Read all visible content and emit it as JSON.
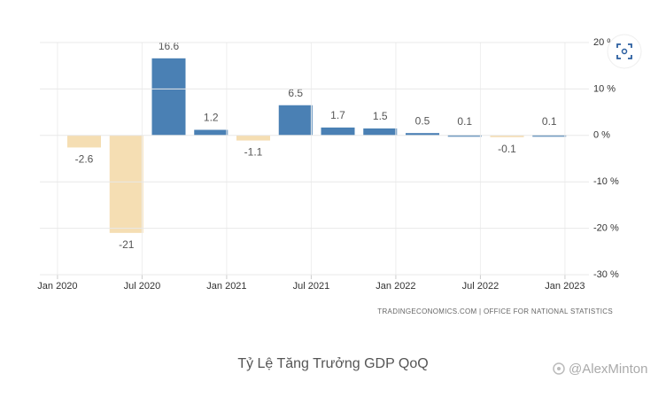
{
  "chart_data": {
    "type": "bar",
    "title": "Tỷ Lệ Tăng Trưởng GDP QoQ",
    "source": "TRADINGECONOMICS.COM | OFFICE FOR NATIONAL STATISTICS",
    "watermark": "@AlexMinton",
    "categories": [
      null,
      null,
      null,
      null,
      null,
      null,
      null,
      null,
      null,
      null,
      null,
      null
    ],
    "values": [
      -2.6,
      -21,
      16.6,
      1.2,
      -1.1,
      6.5,
      1.7,
      1.5,
      0.5,
      0.1,
      -0.1,
      0.1
    ],
    "color": "#4a80b4",
    "negative_color": "#f5deb3",
    "xticks": [
      "Jan 2020",
      "Jul 2020",
      "Jan 2021",
      "Jul 2021",
      "Jan 2022",
      "Jul 2022",
      "Jan 2023"
    ],
    "ylim": [
      -30,
      20
    ],
    "yticks": [
      {
        "value": 20,
        "label": "20 %"
      },
      {
        "value": 10,
        "label": "10 %"
      },
      {
        "value": 0,
        "label": "0 %"
      },
      {
        "value": -10,
        "label": "-10 %"
      },
      {
        "value": -20,
        "label": "-20 %"
      },
      {
        "value": -30,
        "label": "-30 %"
      }
    ],
    "grid": true
  }
}
